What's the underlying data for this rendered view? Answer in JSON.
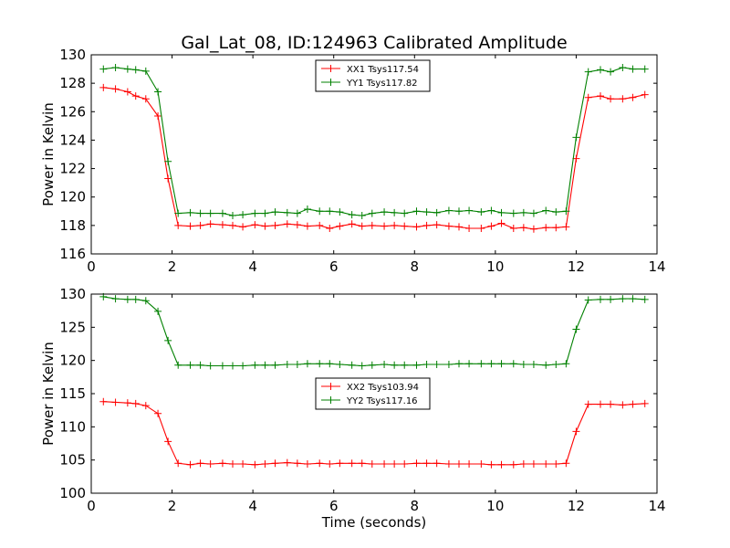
{
  "figure": {
    "title": "Gal_Lat_08, ID:124963 Calibrated Amplitude"
  },
  "chart_data": [
    {
      "type": "line",
      "title": "Gal_Lat_08, ID:124963 Calibrated Amplitude",
      "xlabel": "",
      "ylabel": "Power in Kelvin",
      "xlim": [
        0,
        14
      ],
      "ylim": [
        116,
        130
      ],
      "xticks": [
        0,
        2,
        4,
        6,
        8,
        10,
        12,
        14
      ],
      "yticks": [
        116,
        118,
        120,
        122,
        124,
        126,
        128,
        130
      ],
      "grid": false,
      "legend_position": "top-center",
      "x": [
        0.3,
        0.6,
        0.9,
        1.1,
        1.35,
        1.65,
        1.9,
        2.15,
        2.45,
        2.7,
        2.95,
        3.25,
        3.5,
        3.75,
        4.05,
        4.3,
        4.55,
        4.85,
        5.1,
        5.35,
        5.65,
        5.9,
        6.15,
        6.45,
        6.7,
        6.95,
        7.25,
        7.5,
        7.75,
        8.05,
        8.3,
        8.55,
        8.85,
        9.1,
        9.35,
        9.65,
        9.9,
        10.15,
        10.45,
        10.7,
        10.95,
        11.25,
        11.5,
        11.75,
        12.0,
        12.3,
        12.6,
        12.85,
        13.15,
        13.4,
        13.7
      ],
      "series": [
        {
          "name": "XX1 Tsys117.54",
          "color": "#ff0000",
          "values": [
            127.7,
            127.6,
            127.4,
            127.1,
            126.9,
            125.7,
            121.3,
            118.0,
            117.95,
            118.0,
            118.1,
            118.05,
            118.0,
            117.9,
            118.05,
            117.95,
            118.0,
            118.1,
            118.05,
            117.95,
            118.0,
            117.8,
            117.95,
            118.1,
            117.95,
            118.0,
            117.95,
            118.0,
            117.95,
            117.9,
            118.0,
            118.05,
            117.95,
            117.9,
            117.8,
            117.8,
            117.95,
            118.15,
            117.8,
            117.85,
            117.75,
            117.85,
            117.85,
            117.9,
            122.7,
            127.0,
            127.1,
            126.9,
            126.9,
            127.0,
            127.2
          ]
        },
        {
          "name": "YY1 Tsys117.82",
          "color": "#008000",
          "values": [
            129.0,
            129.1,
            129.0,
            128.95,
            128.85,
            127.4,
            122.5,
            118.85,
            118.9,
            118.85,
            118.85,
            118.85,
            118.7,
            118.75,
            118.85,
            118.85,
            118.95,
            118.9,
            118.85,
            119.15,
            119.0,
            119.0,
            118.95,
            118.75,
            118.7,
            118.85,
            118.95,
            118.9,
            118.85,
            119.0,
            118.95,
            118.9,
            119.05,
            119.0,
            119.05,
            118.95,
            119.05,
            118.9,
            118.85,
            118.9,
            118.85,
            119.05,
            118.95,
            119.0,
            124.2,
            128.8,
            128.95,
            128.8,
            129.1,
            129.0,
            129.0
          ]
        }
      ]
    },
    {
      "type": "line",
      "title": "",
      "xlabel": "Time (seconds)",
      "ylabel": "Power in Kelvin",
      "xlim": [
        0,
        14
      ],
      "ylim": [
        100,
        130
      ],
      "xticks": [
        0,
        2,
        4,
        6,
        8,
        10,
        12,
        14
      ],
      "yticks": [
        100,
        105,
        110,
        115,
        120,
        125,
        130
      ],
      "grid": false,
      "legend_position": "center",
      "x": [
        0.3,
        0.6,
        0.9,
        1.1,
        1.35,
        1.65,
        1.9,
        2.15,
        2.45,
        2.7,
        2.95,
        3.25,
        3.5,
        3.75,
        4.05,
        4.3,
        4.55,
        4.85,
        5.1,
        5.35,
        5.65,
        5.9,
        6.15,
        6.45,
        6.7,
        6.95,
        7.25,
        7.5,
        7.75,
        8.05,
        8.3,
        8.55,
        8.85,
        9.1,
        9.35,
        9.65,
        9.9,
        10.15,
        10.45,
        10.7,
        10.95,
        11.25,
        11.5,
        11.75,
        12.0,
        12.3,
        12.6,
        12.85,
        13.15,
        13.4,
        13.7
      ],
      "series": [
        {
          "name": "XX2 Tsys103.94",
          "color": "#ff0000",
          "values": [
            113.8,
            113.7,
            113.6,
            113.5,
            113.2,
            112.0,
            107.8,
            104.5,
            104.3,
            104.5,
            104.4,
            104.5,
            104.4,
            104.4,
            104.3,
            104.4,
            104.5,
            104.6,
            104.5,
            104.4,
            104.5,
            104.4,
            104.5,
            104.5,
            104.5,
            104.4,
            104.4,
            104.4,
            104.4,
            104.5,
            104.5,
            104.5,
            104.4,
            104.4,
            104.4,
            104.4,
            104.3,
            104.3,
            104.3,
            104.4,
            104.4,
            104.4,
            104.4,
            104.5,
            109.3,
            113.4,
            113.4,
            113.4,
            113.3,
            113.4,
            113.5
          ]
        },
        {
          "name": "YY2 Tsys117.16",
          "color": "#008000",
          "values": [
            129.6,
            129.3,
            129.2,
            129.2,
            129.0,
            127.4,
            123.0,
            119.3,
            119.3,
            119.3,
            119.2,
            119.2,
            119.2,
            119.2,
            119.3,
            119.3,
            119.3,
            119.4,
            119.4,
            119.5,
            119.5,
            119.5,
            119.4,
            119.3,
            119.2,
            119.3,
            119.4,
            119.3,
            119.3,
            119.3,
            119.4,
            119.4,
            119.4,
            119.5,
            119.5,
            119.5,
            119.5,
            119.5,
            119.5,
            119.4,
            119.4,
            119.3,
            119.4,
            119.5,
            124.7,
            129.1,
            129.2,
            129.2,
            129.3,
            129.3,
            129.2
          ]
        }
      ]
    }
  ]
}
